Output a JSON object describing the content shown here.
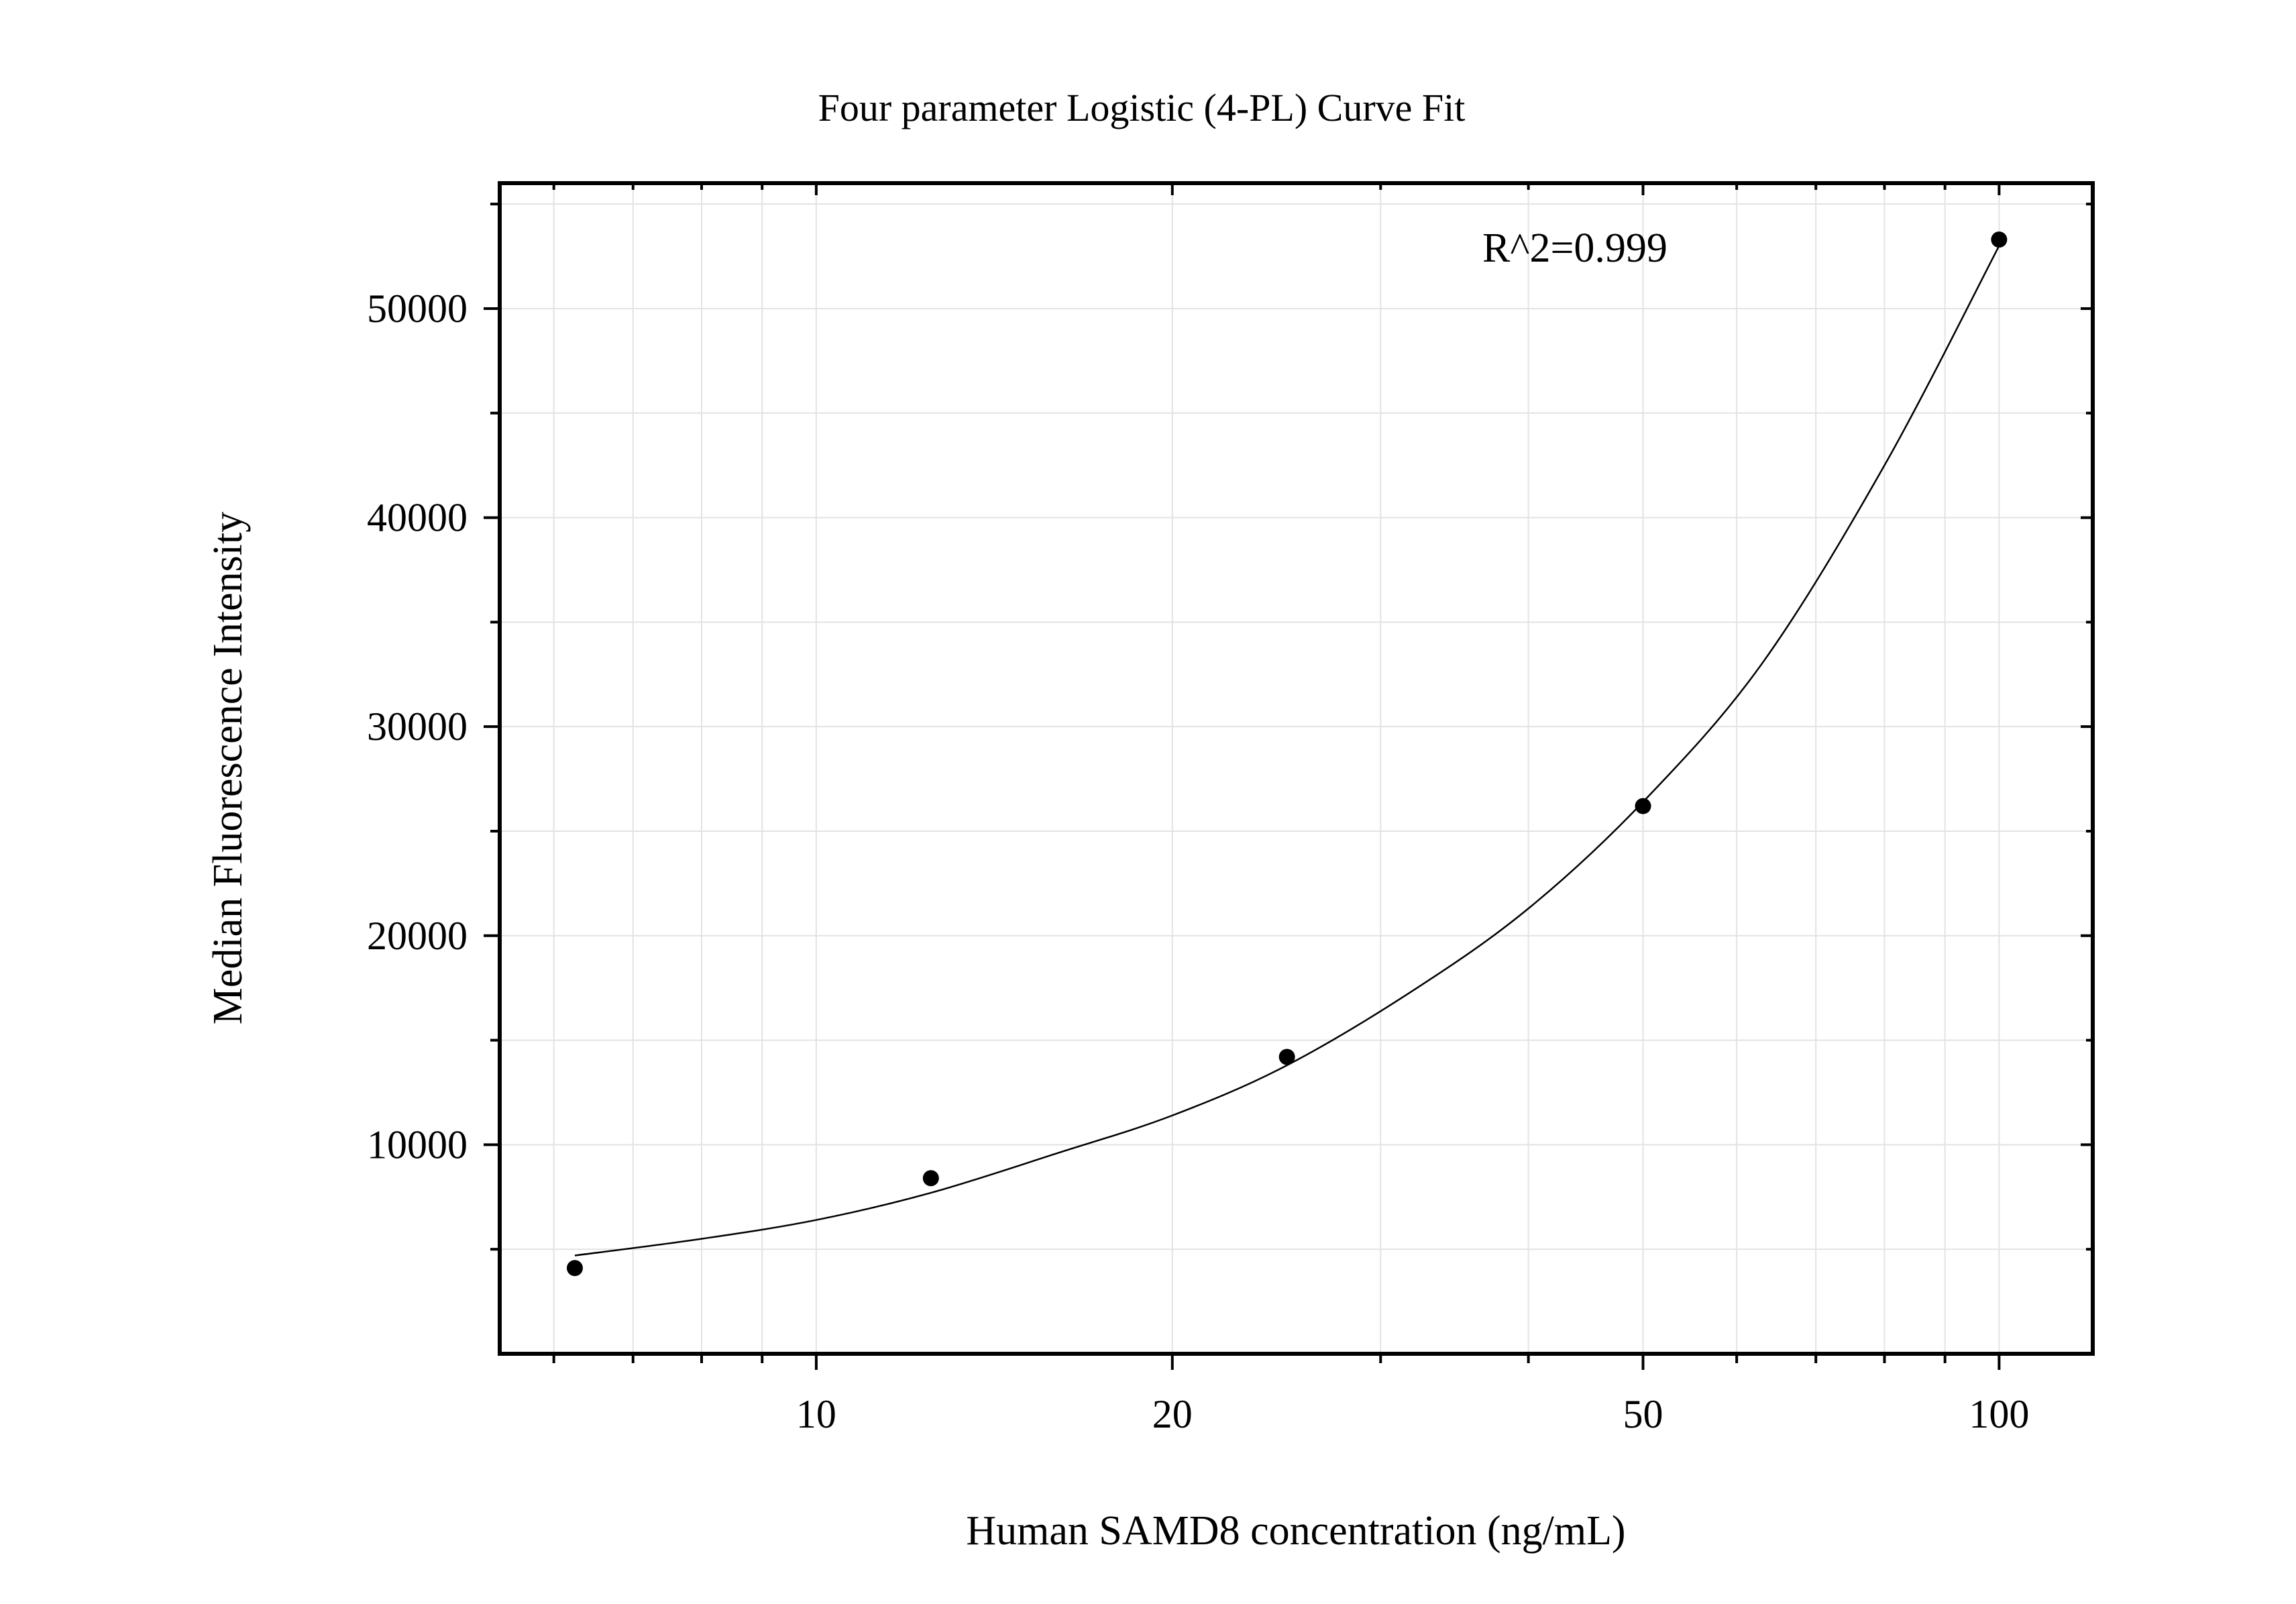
{
  "chart_data": {
    "type": "scatter",
    "title": "Four parameter Logistic (4-PL) Curve Fit",
    "xlabel": "Human SAMD8 concentration (ng/mL)",
    "ylabel": "Median Fluorescence Intensity",
    "x_scale": "log",
    "xlim": [
      5.4,
      120
    ],
    "ylim": [
      0,
      56000
    ],
    "x_ticks": [
      10,
      20,
      50,
      100
    ],
    "x_tick_labels": [
      "10",
      "20",
      "50",
      "100"
    ],
    "x_minor_ticks": [
      6,
      7,
      8,
      9,
      30,
      40,
      60,
      70,
      80,
      90
    ],
    "y_ticks": [
      10000,
      20000,
      30000,
      40000,
      50000
    ],
    "y_tick_labels": [
      "10000",
      "20000",
      "30000",
      "40000",
      "50000"
    ],
    "y_minor_ticks": [
      5000,
      15000,
      25000,
      35000,
      45000,
      55000
    ],
    "grid": true,
    "legend": "none",
    "annotation": "R^2=0.999",
    "series": [
      {
        "points": [
          {
            "x": 6.25,
            "y": 4100
          },
          {
            "x": 12.5,
            "y": 8400
          },
          {
            "x": 25,
            "y": 14200
          },
          {
            "x": 50,
            "y": 26200
          },
          {
            "x": 100,
            "y": 53300
          }
        ],
        "point_color": "#000000"
      }
    ],
    "fit_curve": {
      "x_range": [
        6.25,
        100
      ],
      "points": [
        {
          "x": 6.25,
          "y": 4700
        },
        {
          "x": 8,
          "y": 5500
        },
        {
          "x": 10,
          "y": 6400
        },
        {
          "x": 12.5,
          "y": 7700
        },
        {
          "x": 16,
          "y": 9600
        },
        {
          "x": 20,
          "y": 11400
        },
        {
          "x": 25,
          "y": 13800
        },
        {
          "x": 32,
          "y": 17400
        },
        {
          "x": 40,
          "y": 21300
        },
        {
          "x": 50,
          "y": 26400
        },
        {
          "x": 63,
          "y": 33000
        },
        {
          "x": 80,
          "y": 42500
        },
        {
          "x": 100,
          "y": 53000
        }
      ],
      "line_color": "#000000"
    }
  }
}
